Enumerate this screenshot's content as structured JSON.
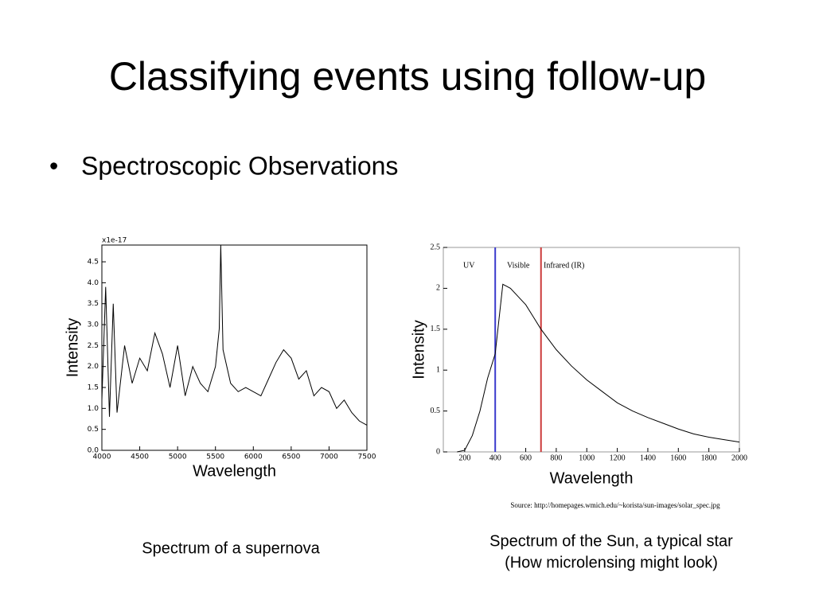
{
  "title": "Classifying events using follow-up",
  "bullets": [
    "Spectroscopic Observations"
  ],
  "chart_data": [
    {
      "type": "line",
      "y_label": "Intensity",
      "x_label": "Wavelength",
      "offset_label": "x1e-17",
      "xlim": [
        4000,
        7500
      ],
      "ylim": [
        0,
        4.9
      ],
      "xticks": [
        4000,
        4500,
        5000,
        5500,
        6000,
        6500,
        7000,
        7500
      ],
      "yticks": [
        {
          "value": 0,
          "label": "0.0"
        },
        {
          "value": 0.5,
          "label": "0.5"
        },
        {
          "value": 1,
          "label": "1.0"
        },
        {
          "value": 1.5,
          "label": "1.5"
        },
        {
          "value": 2,
          "label": "2.0"
        },
        {
          "value": 2.5,
          "label": "2.5"
        },
        {
          "value": 3,
          "label": "3.0"
        },
        {
          "value": 3.5,
          "label": "3.5"
        },
        {
          "value": 4,
          "label": "4.0"
        },
        {
          "value": 4.5,
          "label": "4.5"
        }
      ],
      "x": [
        4000,
        4050,
        4100,
        4150,
        4200,
        4300,
        4400,
        4500,
        4600,
        4700,
        4800,
        4900,
        5000,
        5100,
        5200,
        5300,
        5400,
        5500,
        5550,
        5570,
        5600,
        5700,
        5800,
        5900,
        6000,
        6100,
        6200,
        6300,
        6400,
        6500,
        6600,
        6700,
        6800,
        6900,
        7000,
        7100,
        7200,
        7300,
        7400,
        7500
      ],
      "series": [
        {
          "color": "#000000",
          "values": [
            1.2,
            3.9,
            0.8,
            3.5,
            0.9,
            2.5,
            1.6,
            2.2,
            1.9,
            2.8,
            2.3,
            1.5,
            2.5,
            1.3,
            2.0,
            1.6,
            1.4,
            2.0,
            2.9,
            4.9,
            2.4,
            1.6,
            1.4,
            1.5,
            1.4,
            1.3,
            1.7,
            2.1,
            2.4,
            2.2,
            1.7,
            1.9,
            1.3,
            1.5,
            1.4,
            1.0,
            1.2,
            0.9,
            0.7,
            0.6
          ]
        }
      ]
    },
    {
      "type": "line",
      "y_label": "Intensity",
      "x_label": "Wavelength",
      "xlim": [
        60,
        2000
      ],
      "ylim": [
        0,
        2.5
      ],
      "xticks": [
        200,
        400,
        600,
        800,
        1000,
        1200,
        1400,
        1600,
        1800,
        2000
      ],
      "yticks": [
        0,
        0.5,
        1,
        1.5,
        2,
        2.5
      ],
      "annotations": [
        "UV",
        "Visible",
        "Infrared (IR)"
      ],
      "vlines": [
        {
          "x": 400,
          "color": "#3a3acc"
        },
        {
          "x": 700,
          "color": "#cc3a3a"
        }
      ],
      "x": [
        150,
        200,
        250,
        300,
        350,
        400,
        450,
        500,
        550,
        600,
        650,
        700,
        800,
        900,
        1000,
        1100,
        1200,
        1300,
        1400,
        1500,
        1600,
        1700,
        1800,
        1900,
        2000
      ],
      "series": [
        {
          "color": "#000000",
          "values": [
            0,
            0.02,
            0.2,
            0.5,
            0.9,
            1.2,
            2.05,
            2.0,
            1.9,
            1.8,
            1.65,
            1.5,
            1.25,
            1.05,
            0.88,
            0.74,
            0.6,
            0.5,
            0.42,
            0.35,
            0.28,
            0.22,
            0.18,
            0.15,
            0.12
          ]
        }
      ]
    }
  ],
  "source": "Source: http://homepages.wmich.edu/~korista/sun-images/solar_spec.jpg",
  "captions": [
    [
      "Spectrum of a supernova"
    ],
    [
      "Spectrum of the Sun, a typical star",
      "(How microlensing might look)"
    ]
  ]
}
